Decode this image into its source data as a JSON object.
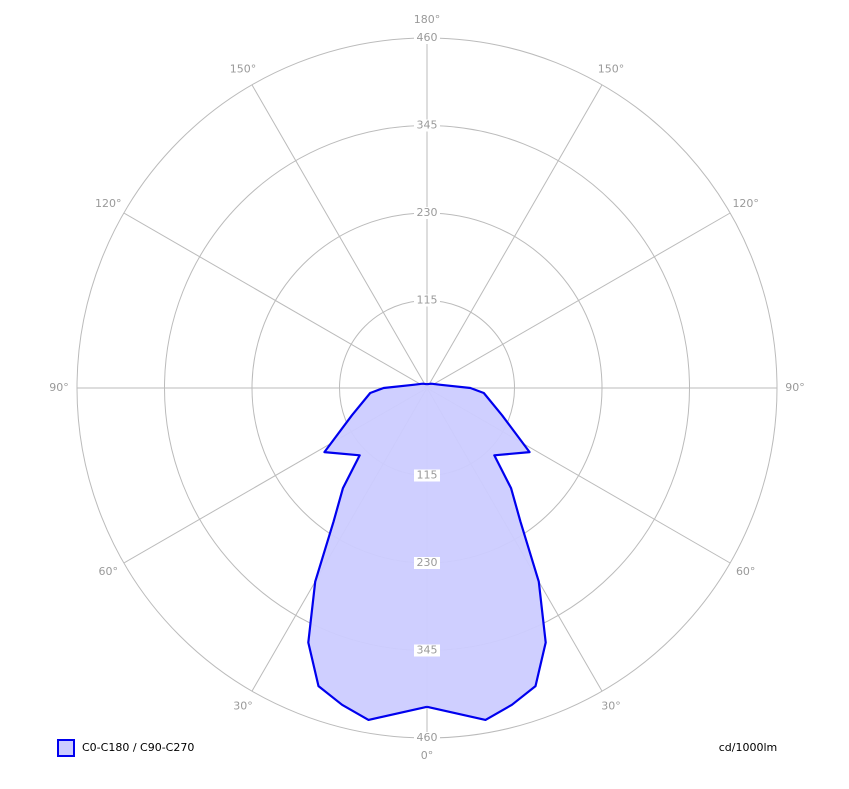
{
  "chart_data": {
    "type": "polar",
    "x": [
      0,
      10,
      15,
      20,
      25,
      30,
      35,
      40,
      45,
      58,
      70,
      85,
      90,
      105,
      135,
      180
    ],
    "series": [
      {
        "name": "C0-C180 / C90-C270",
        "color": "#0000ee",
        "fill": "#ccccff",
        "values": [
          419,
          443,
          431,
          417,
          369,
          294,
          214,
          172,
          125,
          159,
          105,
          75,
          57,
          17,
          8,
          5
        ]
      }
    ],
    "rlim": [
      0,
      460
    ],
    "rticks": [
      115,
      230,
      345,
      460
    ],
    "xlim": [
      0,
      180
    ],
    "xticks": [
      {
        "value": 0,
        "label": "0°"
      },
      {
        "value": 30,
        "label": "30°"
      },
      {
        "value": 60,
        "label": "60°"
      },
      {
        "value": 90,
        "label": "90°"
      },
      {
        "value": 120,
        "label": "120°"
      },
      {
        "value": 150,
        "label": "150°"
      },
      {
        "value": 180,
        "label": "180°"
      }
    ],
    "unit_label": "cd/1000lm"
  }
}
